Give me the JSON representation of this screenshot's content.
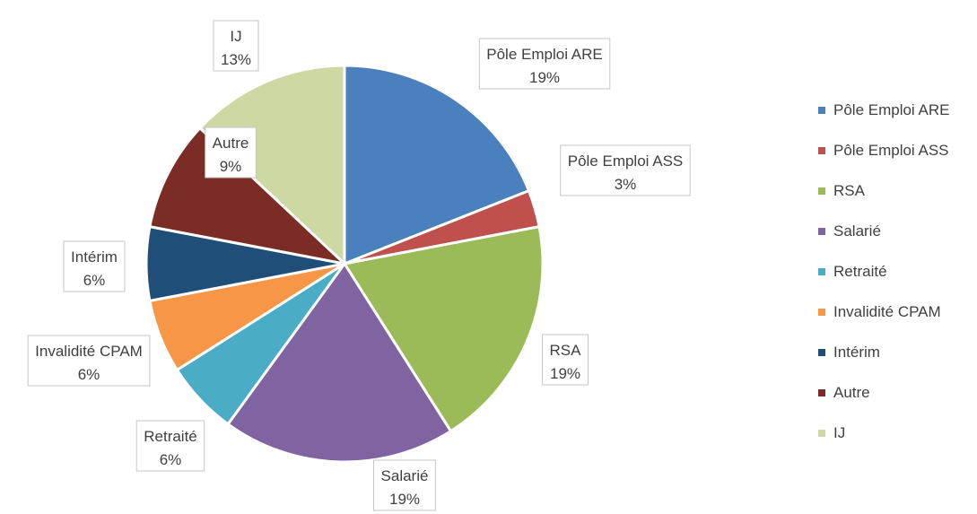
{
  "chart_data": {
    "type": "pie",
    "title": "",
    "series": [
      {
        "label": "Pôle Emploi ARE",
        "value": 19,
        "display": "19%",
        "color": "#4b80bf"
      },
      {
        "label": "Pôle Emploi ASS",
        "value": 3,
        "display": "3%",
        "color": "#c0504d"
      },
      {
        "label": "RSA",
        "value": 19,
        "display": "19%",
        "color": "#9bbb59"
      },
      {
        "label": "Salarié",
        "value": 19,
        "display": "19%",
        "color": "#8064a2"
      },
      {
        "label": "Retraité",
        "value": 6,
        "display": "6%",
        "color": "#4bacc6"
      },
      {
        "label": "Invalidité CPAM",
        "value": 6,
        "display": "6%",
        "color": "#f79646"
      },
      {
        "label": "Intérim",
        "value": 6,
        "display": "6%",
        "color": "#1f4e79"
      },
      {
        "label": "Autre",
        "value": 9,
        "display": "9%",
        "color": "#7b2c25"
      },
      {
        "label": "IJ",
        "value": 13,
        "display": "13%",
        "color": "#cdd8a3"
      }
    ],
    "legend_position": "right",
    "data_labels": "callouts with category and percent"
  }
}
